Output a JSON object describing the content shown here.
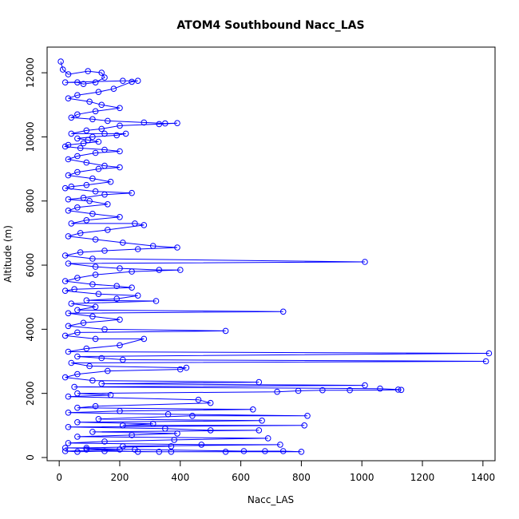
{
  "chart_data": {
    "type": "scatter",
    "title": "ATOM4 Southbound Nacc_LAS",
    "xlabel": "Nacc_LAS",
    "ylabel": "Altitude (m)",
    "xlim": [
      -40,
      1440
    ],
    "ylim": [
      -100,
      12800
    ],
    "x_ticks": [
      0,
      200,
      400,
      600,
      800,
      1000,
      1200,
      1400
    ],
    "y_ticks": [
      0,
      2000,
      4000,
      6000,
      8000,
      10000,
      12000
    ],
    "grid": false,
    "legend": "none",
    "color": "#0000ff",
    "series": [
      {
        "points": [
          [
            5,
            12350
          ],
          [
            12,
            12100
          ],
          [
            30,
            11950
          ],
          [
            95,
            12050
          ],
          [
            140,
            12000
          ],
          [
            150,
            11850
          ],
          [
            120,
            11700
          ],
          [
            80,
            11650
          ],
          [
            60,
            11700
          ],
          [
            20,
            11700
          ],
          [
            210,
            11750
          ],
          [
            260,
            11750
          ],
          [
            240,
            11720
          ],
          [
            180,
            11500
          ],
          [
            130,
            11400
          ],
          [
            60,
            11300
          ],
          [
            30,
            11200
          ],
          [
            100,
            11100
          ],
          [
            140,
            11000
          ],
          [
            200,
            10900
          ],
          [
            120,
            10800
          ],
          [
            60,
            10700
          ],
          [
            40,
            10600
          ],
          [
            110,
            10550
          ],
          [
            160,
            10500
          ],
          [
            280,
            10450
          ],
          [
            350,
            10420
          ],
          [
            390,
            10430
          ],
          [
            330,
            10400
          ],
          [
            200,
            10350
          ],
          [
            140,
            10250
          ],
          [
            90,
            10200
          ],
          [
            40,
            10100
          ],
          [
            150,
            10100
          ],
          [
            220,
            10100
          ],
          [
            190,
            10050
          ],
          [
            110,
            10000
          ],
          [
            60,
            9950
          ],
          [
            95,
            9900
          ],
          [
            130,
            9850
          ],
          [
            80,
            9800
          ],
          [
            30,
            9750
          ],
          [
            20,
            9700
          ],
          [
            70,
            9650
          ],
          [
            150,
            9600
          ],
          [
            200,
            9550
          ],
          [
            120,
            9500
          ],
          [
            60,
            9400
          ],
          [
            30,
            9300
          ],
          [
            90,
            9200
          ],
          [
            150,
            9100
          ],
          [
            200,
            9050
          ],
          [
            130,
            9000
          ],
          [
            60,
            8900
          ],
          [
            30,
            8800
          ],
          [
            110,
            8700
          ],
          [
            170,
            8600
          ],
          [
            90,
            8500
          ],
          [
            40,
            8450
          ],
          [
            20,
            8400
          ],
          [
            120,
            8300
          ],
          [
            240,
            8250
          ],
          [
            150,
            8200
          ],
          [
            80,
            8100
          ],
          [
            30,
            8050
          ],
          [
            100,
            8000
          ],
          [
            160,
            7900
          ],
          [
            60,
            7800
          ],
          [
            30,
            7700
          ],
          [
            110,
            7600
          ],
          [
            200,
            7500
          ],
          [
            90,
            7400
          ],
          [
            40,
            7300
          ],
          [
            250,
            7300
          ],
          [
            280,
            7250
          ],
          [
            160,
            7100
          ],
          [
            70,
            7000
          ],
          [
            30,
            6900
          ],
          [
            120,
            6800
          ],
          [
            210,
            6700
          ],
          [
            310,
            6600
          ],
          [
            390,
            6550
          ],
          [
            260,
            6500
          ],
          [
            150,
            6450
          ],
          [
            70,
            6400
          ],
          [
            20,
            6300
          ],
          [
            110,
            6200
          ],
          [
            1010,
            6100
          ],
          [
            30,
            6050
          ],
          [
            120,
            5950
          ],
          [
            200,
            5900
          ],
          [
            330,
            5850
          ],
          [
            400,
            5850
          ],
          [
            240,
            5800
          ],
          [
            120,
            5700
          ],
          [
            60,
            5600
          ],
          [
            20,
            5500
          ],
          [
            110,
            5400
          ],
          [
            190,
            5350
          ],
          [
            240,
            5300
          ],
          [
            50,
            5250
          ],
          [
            20,
            5200
          ],
          [
            130,
            5100
          ],
          [
            260,
            5050
          ],
          [
            190,
            4950
          ],
          [
            90,
            4900
          ],
          [
            320,
            4880
          ],
          [
            40,
            4800
          ],
          [
            120,
            4700
          ],
          [
            60,
            4600
          ],
          [
            740,
            4550
          ],
          [
            30,
            4500
          ],
          [
            110,
            4400
          ],
          [
            200,
            4300
          ],
          [
            80,
            4200
          ],
          [
            30,
            4100
          ],
          [
            150,
            4000
          ],
          [
            550,
            3950
          ],
          [
            60,
            3900
          ],
          [
            20,
            3800
          ],
          [
            120,
            3700
          ],
          [
            280,
            3700
          ],
          [
            200,
            3500
          ],
          [
            90,
            3400
          ],
          [
            30,
            3300
          ],
          [
            1420,
            3250
          ],
          [
            60,
            3150
          ],
          [
            140,
            3100
          ],
          [
            210,
            3050
          ],
          [
            1410,
            3000
          ],
          [
            40,
            2950
          ],
          [
            100,
            2850
          ],
          [
            420,
            2800
          ],
          [
            400,
            2750
          ],
          [
            160,
            2700
          ],
          [
            60,
            2600
          ],
          [
            20,
            2500
          ],
          [
            110,
            2400
          ],
          [
            660,
            2350
          ],
          [
            140,
            2300
          ],
          [
            1010,
            2250
          ],
          [
            50,
            2200
          ],
          [
            1060,
            2150
          ],
          [
            1120,
            2120
          ],
          [
            1130,
            2110
          ],
          [
            960,
            2100
          ],
          [
            870,
            2100
          ],
          [
            790,
            2080
          ],
          [
            720,
            2050
          ],
          [
            60,
            2000
          ],
          [
            170,
            1950
          ],
          [
            30,
            1900
          ],
          [
            460,
            1800
          ],
          [
            500,
            1700
          ],
          [
            120,
            1600
          ],
          [
            60,
            1550
          ],
          [
            640,
            1500
          ],
          [
            200,
            1450
          ],
          [
            30,
            1400
          ],
          [
            360,
            1350
          ],
          [
            820,
            1300
          ],
          [
            440,
            1300
          ],
          [
            130,
            1200
          ],
          [
            670,
            1150
          ],
          [
            60,
            1100
          ],
          [
            310,
            1050
          ],
          [
            210,
            1000
          ],
          [
            810,
            1000
          ],
          [
            30,
            950
          ],
          [
            350,
            900
          ],
          [
            500,
            850
          ],
          [
            660,
            850
          ],
          [
            110,
            800
          ],
          [
            390,
            750
          ],
          [
            240,
            700
          ],
          [
            60,
            650
          ],
          [
            690,
            600
          ],
          [
            380,
            550
          ],
          [
            150,
            500
          ],
          [
            30,
            450
          ],
          [
            470,
            400
          ],
          [
            730,
            400
          ],
          [
            210,
            350
          ],
          [
            370,
            350
          ],
          [
            90,
            300
          ],
          [
            20,
            300
          ],
          [
            250,
            250
          ],
          [
            610,
            200
          ],
          [
            680,
            200
          ],
          [
            740,
            200
          ],
          [
            800,
            180
          ],
          [
            550,
            180
          ],
          [
            330,
            180
          ],
          [
            150,
            200
          ],
          [
            60,
            180
          ],
          [
            20,
            200
          ],
          [
            200,
            250
          ],
          [
            90,
            250
          ],
          [
            260,
            180
          ],
          [
            370,
            180
          ]
        ]
      }
    ]
  }
}
